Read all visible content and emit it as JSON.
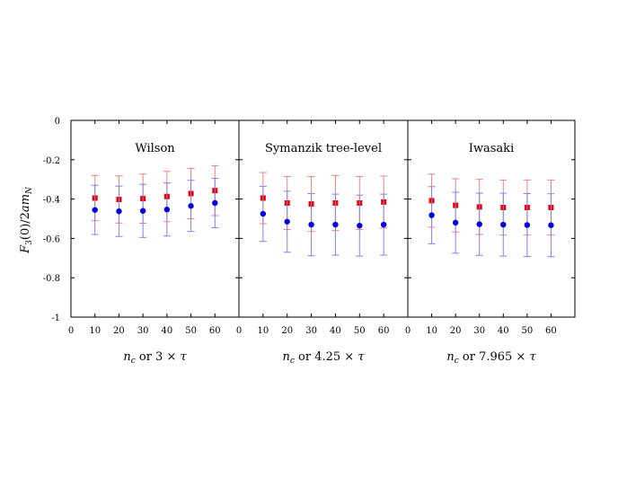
{
  "chart_data": {
    "type": "scatter",
    "ylabel": "F_3(0)/2am_N",
    "ylim": [
      -1,
      0
    ],
    "yticks": [
      0,
      -0.2,
      -0.4,
      -0.6,
      -0.8,
      -1
    ],
    "ytick_labels": [
      "0",
      "-0.2",
      "-0.4",
      "-0.6",
      "-0.8",
      "-1"
    ],
    "xlim": [
      0,
      70
    ],
    "xticks": [
      0,
      10,
      20,
      30,
      40,
      50,
      60
    ],
    "xtick_labels": [
      "0",
      "10",
      "20",
      "30",
      "40",
      "50",
      "60"
    ],
    "grid": false,
    "colors": {
      "red": "#ee0000",
      "blue": "#0000dd",
      "red_bar": "#f08080",
      "blue_bar": "#8080ee"
    },
    "panels": [
      {
        "title": "Wilson",
        "xlabel": {
          "var": "n",
          "sub": "c",
          "rest": " or 3 × ",
          "var2": "τ"
        },
        "x": [
          10,
          20,
          30,
          40,
          50,
          60
        ],
        "series": [
          {
            "marker": "square",
            "color": "#ee0000",
            "values": [
              -0.395,
              -0.402,
              -0.398,
              -0.387,
              -0.372,
              -0.357
            ],
            "err": [
              0.115,
              0.12,
              0.125,
              0.128,
              0.128,
              0.127
            ]
          },
          {
            "marker": "circle",
            "color": "#0000dd",
            "values": [
              -0.455,
              -0.462,
              -0.46,
              -0.453,
              -0.435,
              -0.42
            ],
            "err": [
              0.125,
              0.128,
              0.135,
              0.135,
              0.13,
              0.125
            ]
          }
        ]
      },
      {
        "title": "Symanzik tree-level",
        "xlabel": {
          "var": "n",
          "sub": "c",
          "rest": " or 4.25 × ",
          "var2": "τ"
        },
        "x": [
          10,
          20,
          30,
          40,
          50,
          60
        ],
        "series": [
          {
            "marker": "square",
            "color": "#ee0000",
            "values": [
              -0.395,
              -0.42,
              -0.425,
              -0.42,
              -0.42,
              -0.415
            ],
            "err": [
              0.13,
              0.135,
              0.14,
              0.14,
              0.135,
              0.132
            ]
          },
          {
            "marker": "circle",
            "color": "#0000dd",
            "values": [
              -0.475,
              -0.515,
              -0.53,
              -0.53,
              -0.535,
              -0.53
            ],
            "err": [
              0.14,
              0.155,
              0.158,
              0.155,
              0.155,
              0.155
            ]
          }
        ]
      },
      {
        "title": "Iwasaki",
        "xlabel": {
          "var": "n",
          "sub": "c",
          "rest": " or 7.965 × ",
          "var2": "τ"
        },
        "x": [
          10,
          20,
          30,
          40,
          50,
          60
        ],
        "series": [
          {
            "marker": "square",
            "color": "#ee0000",
            "values": [
              -0.408,
              -0.432,
              -0.44,
              -0.443,
              -0.443,
              -0.443
            ],
            "err": [
              0.135,
              0.135,
              0.14,
              0.14,
              0.14,
              0.14
            ]
          },
          {
            "marker": "circle",
            "color": "#0000dd",
            "values": [
              -0.482,
              -0.52,
              -0.528,
              -0.53,
              -0.532,
              -0.533
            ],
            "err": [
              0.145,
              0.155,
              0.158,
              0.16,
              0.16,
              0.16
            ]
          }
        ]
      }
    ]
  }
}
